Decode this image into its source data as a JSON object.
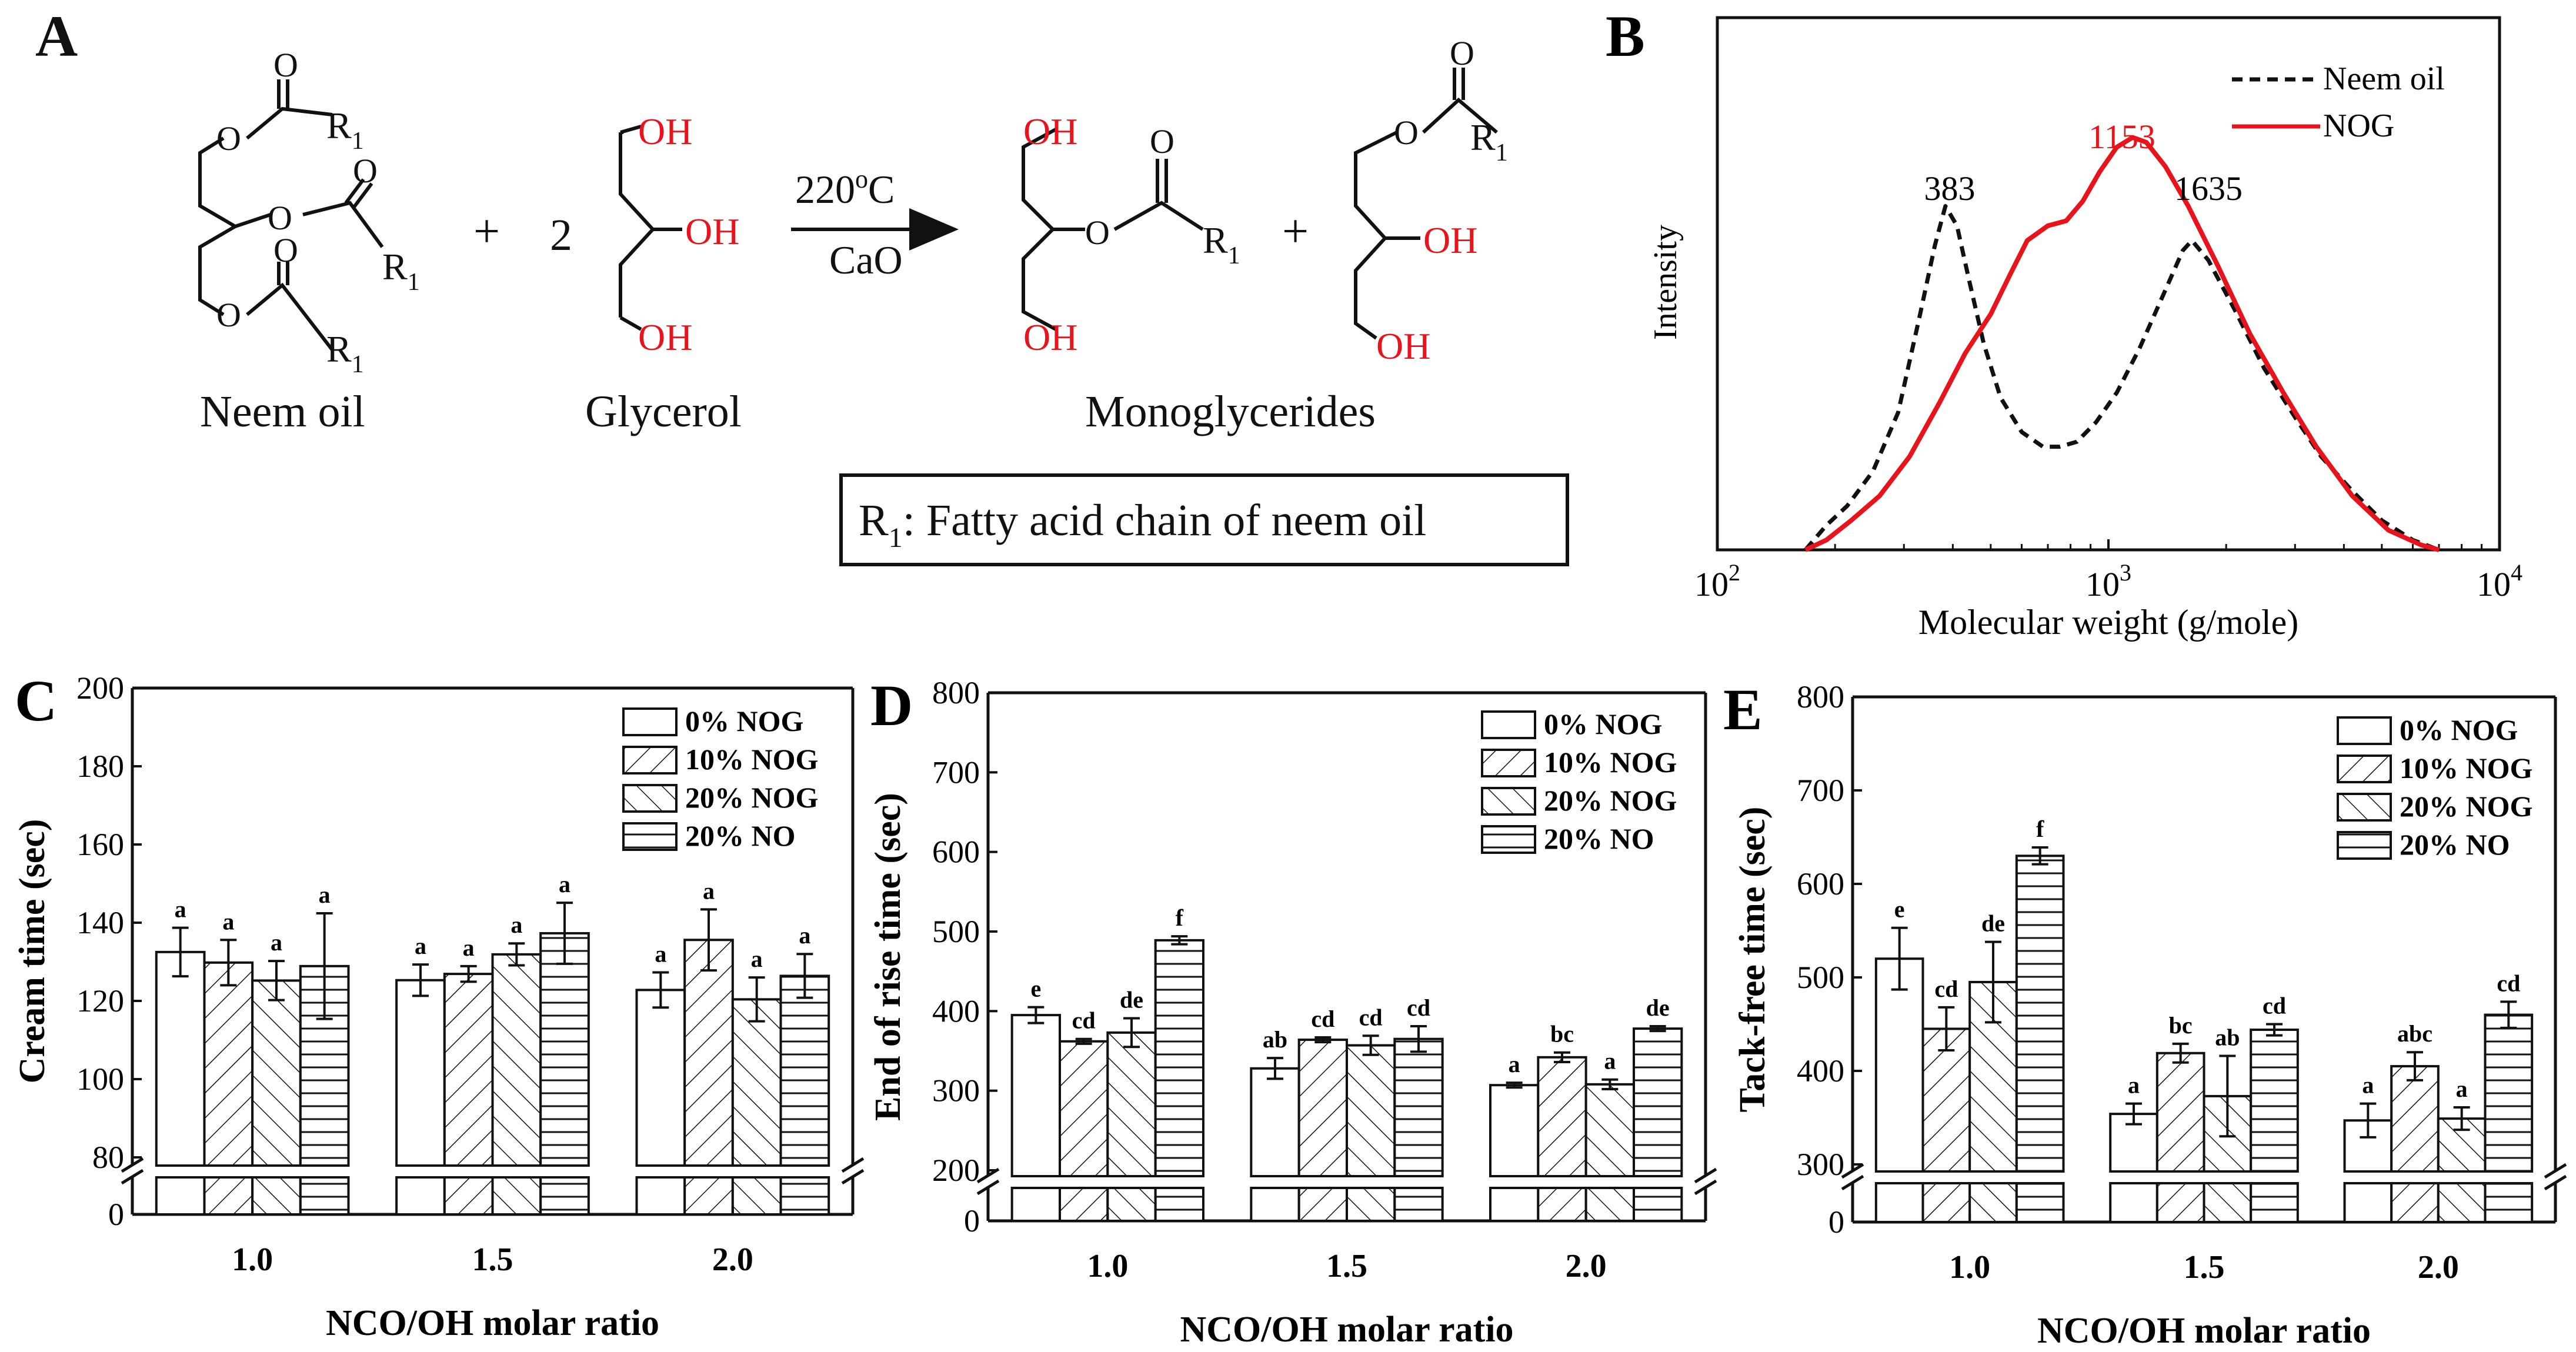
{
  "panel_a": {
    "label": "A",
    "R1": "R",
    "sub1": "1",
    "O": "O",
    "OH": "OH",
    "plus": "+",
    "coef": "2",
    "temp_num": "220",
    "temp_sup": "o",
    "temp_unit": "C",
    "catalyst": "CaO",
    "neem_label": "Neem oil",
    "glycerol_label": "Glycerol",
    "mono_label": "Monoglycerides",
    "note_rest": ": Fatty acid chain of neem oil",
    "colors": {
      "red": "#e8141c",
      "black": "#111111"
    }
  },
  "chart_data": [
    {
      "panel": "B",
      "type": "line",
      "xscale": "log",
      "xlim": [
        100,
        10000
      ],
      "xlabel": "Molecular weight (g/mole)",
      "ylabel": "Intensity",
      "xtick_base": "10",
      "xtick_exps": [
        "2",
        "3",
        "4"
      ],
      "legend": {
        "neem": "Neem oil",
        "nog": "NOG"
      },
      "peak_labels": {
        "neem_left": "383",
        "nog": "1153",
        "neem_right": "1635"
      },
      "series": [
        {
          "name": "Neem oil",
          "color": "#111111",
          "dash": true,
          "x": [
            168,
            190,
            215,
            250,
            290,
            330,
            360,
            383,
            410,
            440,
            480,
            530,
            600,
            680,
            750,
            830,
            930,
            1050,
            1200,
            1400,
            1550,
            1635,
            1800,
            2100,
            2500,
            3000,
            3500,
            4200,
            5000,
            6000,
            7000
          ],
          "y": [
            0.0,
            0.05,
            0.09,
            0.16,
            0.28,
            0.48,
            0.62,
            0.7,
            0.66,
            0.55,
            0.42,
            0.31,
            0.24,
            0.21,
            0.21,
            0.22,
            0.26,
            0.32,
            0.41,
            0.53,
            0.61,
            0.63,
            0.59,
            0.49,
            0.37,
            0.27,
            0.19,
            0.12,
            0.06,
            0.02,
            0.0
          ]
        },
        {
          "name": "NOG",
          "color": "#e8141c",
          "dash": false,
          "x": [
            168,
            190,
            220,
            260,
            310,
            370,
            430,
            500,
            560,
            620,
            700,
            780,
            860,
            950,
            1050,
            1153,
            1250,
            1400,
            1600,
            1900,
            2300,
            2800,
            3400,
            4200,
            5200,
            6300,
            7000
          ],
          "y": [
            0.0,
            0.02,
            0.06,
            0.11,
            0.19,
            0.3,
            0.4,
            0.48,
            0.56,
            0.63,
            0.66,
            0.67,
            0.71,
            0.77,
            0.82,
            0.84,
            0.83,
            0.78,
            0.7,
            0.58,
            0.44,
            0.32,
            0.21,
            0.11,
            0.04,
            0.01,
            0.0
          ]
        }
      ]
    },
    {
      "panel": "C",
      "type": "bar",
      "xlabel": "NCO/OH molar ratio",
      "ylabel": "Cream time (sec)",
      "categories": [
        "1.0",
        "1.5",
        "2.0"
      ],
      "y_ticks": [
        "80",
        "100",
        "120",
        "140",
        "160",
        "180",
        "200"
      ],
      "y_zero": "0",
      "ylim": [
        80,
        200
      ],
      "series": [
        {
          "name": "0% NOG",
          "pattern": "none",
          "values": [
            132.5,
            125.3,
            122.8
          ],
          "errors": [
            6.2,
            4.0,
            4.5
          ],
          "letters": [
            "a",
            "a",
            "a"
          ]
        },
        {
          "name": "10% NOG",
          "pattern": "fwd",
          "values": [
            129.8,
            126.9,
            135.6
          ],
          "errors": [
            5.8,
            2.0,
            7.8
          ],
          "letters": [
            "a",
            "a",
            "a"
          ]
        },
        {
          "name": "20% NOG",
          "pattern": "back",
          "values": [
            125.2,
            131.9,
            120.4
          ],
          "errors": [
            5.0,
            2.8,
            5.6
          ],
          "letters": [
            "a",
            "a",
            "a"
          ]
        },
        {
          "name": "20% NO",
          "pattern": "horiz",
          "values": [
            128.9,
            137.3,
            126.4
          ],
          "errors": [
            13.5,
            7.8,
            5.6
          ],
          "letters": [
            "a",
            "a",
            "a"
          ]
        }
      ]
    },
    {
      "panel": "D",
      "type": "bar",
      "xlabel": "NCO/OH molar ratio",
      "ylabel": "End of rise time (sec)",
      "categories": [
        "1.0",
        "1.5",
        "2.0"
      ],
      "y_ticks": [
        "200",
        "300",
        "400",
        "500",
        "600",
        "700",
        "800"
      ],
      "y_zero": "0",
      "ylim": [
        200,
        800
      ],
      "series": [
        {
          "name": "0% NOG",
          "pattern": "none",
          "values": [
            395,
            328,
            307
          ],
          "errors": [
            10,
            13,
            3
          ],
          "letters": [
            "e",
            "ab",
            "a"
          ]
        },
        {
          "name": "10% NOG",
          "pattern": "fwd",
          "values": [
            362,
            364,
            342
          ],
          "errors": [
            3,
            3,
            6
          ],
          "letters": [
            "cd",
            "cd",
            "bc"
          ]
        },
        {
          "name": "20% NOG",
          "pattern": "back",
          "values": [
            373,
            357,
            308
          ],
          "errors": [
            18,
            12,
            6
          ],
          "letters": [
            "de",
            "cd",
            "a"
          ]
        },
        {
          "name": "20% NO",
          "pattern": "horiz",
          "values": [
            489,
            365,
            378
          ],
          "errors": [
            5,
            16,
            3
          ],
          "letters": [
            "f",
            "cd",
            "de"
          ]
        }
      ]
    },
    {
      "panel": "E",
      "type": "bar",
      "xlabel": "NCO/OH molar ratio",
      "ylabel": "Tack-free time (sec)",
      "categories": [
        "1.0",
        "1.5",
        "2.0"
      ],
      "y_ticks": [
        "300",
        "400",
        "500",
        "600",
        "700",
        "800"
      ],
      "y_zero": "0",
      "ylim": [
        300,
        800
      ],
      "series": [
        {
          "name": "0% NOG",
          "pattern": "none",
          "values": [
            520,
            354,
            347
          ],
          "errors": [
            33,
            11,
            18
          ],
          "letters": [
            "e",
            "a",
            "a"
          ]
        },
        {
          "name": "10% NOG",
          "pattern": "fwd",
          "values": [
            445,
            419,
            405
          ],
          "errors": [
            23,
            10,
            15
          ],
          "letters": [
            "cd",
            "bc",
            "abc"
          ]
        },
        {
          "name": "20% NOG",
          "pattern": "back",
          "values": [
            495,
            373,
            349
          ],
          "errors": [
            43,
            43,
            12
          ],
          "letters": [
            "de",
            "ab",
            "a"
          ]
        },
        {
          "name": "20% NO",
          "pattern": "horiz",
          "values": [
            630,
            444,
            460
          ],
          "errors": [
            9,
            6,
            14
          ],
          "letters": [
            "f",
            "cd",
            "cd"
          ]
        }
      ]
    }
  ]
}
